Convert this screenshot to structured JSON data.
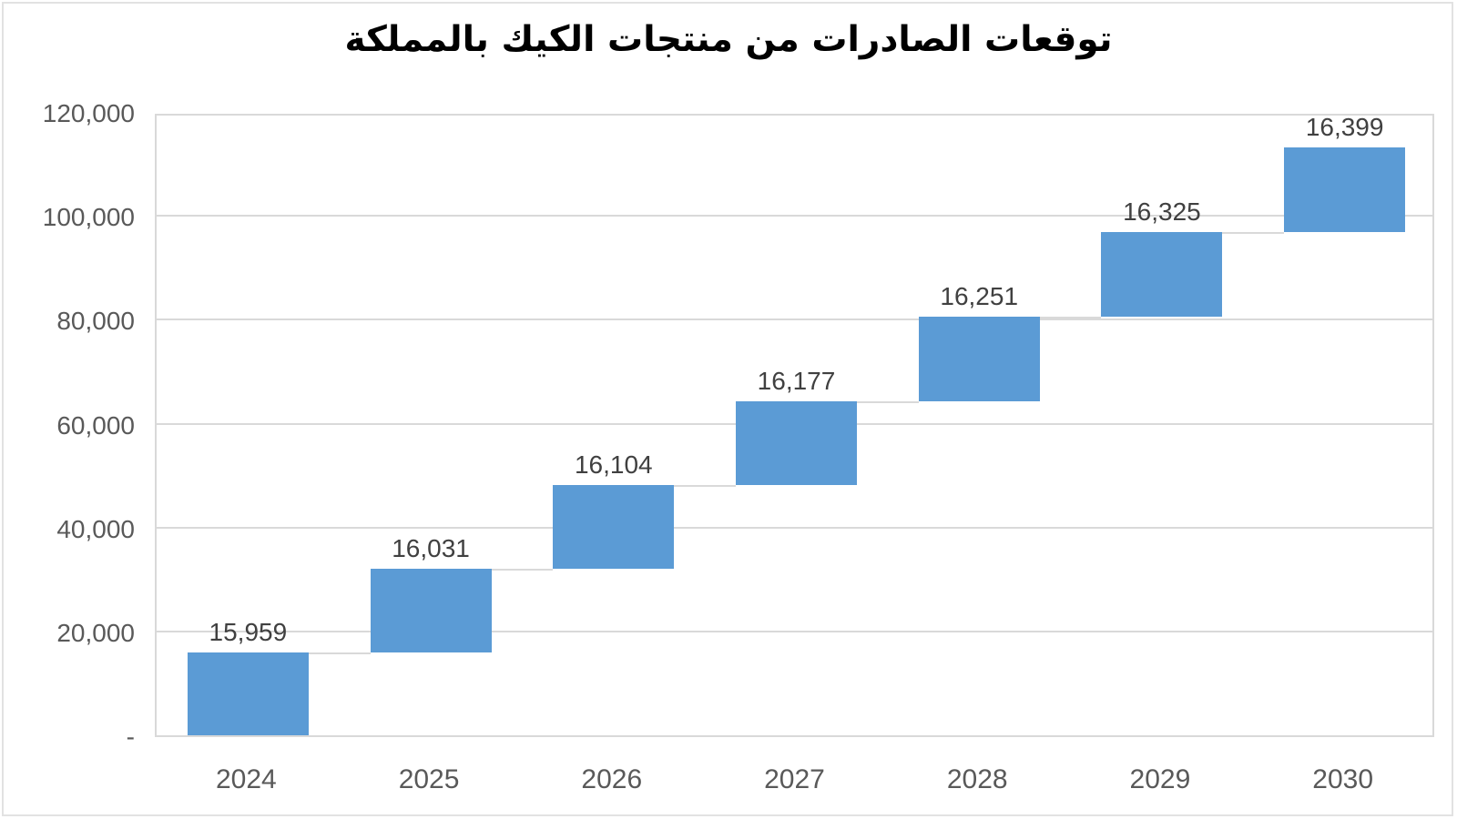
{
  "chart_data": {
    "type": "bar",
    "variant": "waterfall-cumulative",
    "title": "توقعات الصادرات من منتجات الكيك بالمملكة",
    "categories": [
      "2024",
      "2025",
      "2026",
      "2027",
      "2028",
      "2029",
      "2030"
    ],
    "values": [
      15959,
      16031,
      16104,
      16177,
      16251,
      16325,
      16399
    ],
    "value_labels": [
      "15,959",
      "16,031",
      "16,104",
      "16,177",
      "16,251",
      "16,325",
      "16,399"
    ],
    "cumulative_start": [
      0,
      15959,
      31990,
      48094,
      64271,
      80522,
      96847
    ],
    "cumulative_end": [
      15959,
      31990,
      48094,
      64271,
      80522,
      96847,
      113246
    ],
    "ylim": [
      0,
      120000
    ],
    "ytick_values": [
      0,
      20000,
      40000,
      60000,
      80000,
      100000,
      120000
    ],
    "ytick_labels": [
      "-",
      "20,000",
      "40,000",
      "60,000",
      "80,000",
      "100,000",
      "120,000"
    ],
    "grid": true,
    "legend": "none",
    "colors": {
      "bar": "#5B9BD5",
      "gridline": "#D9D9D9",
      "plot_border": "#D9D9D9",
      "connector": "#D9D9D9",
      "axis_label": "#595959",
      "data_label": "#404040",
      "title": "#000000",
      "frame": "#E2E2E2",
      "background": "#FFFFFF"
    }
  }
}
